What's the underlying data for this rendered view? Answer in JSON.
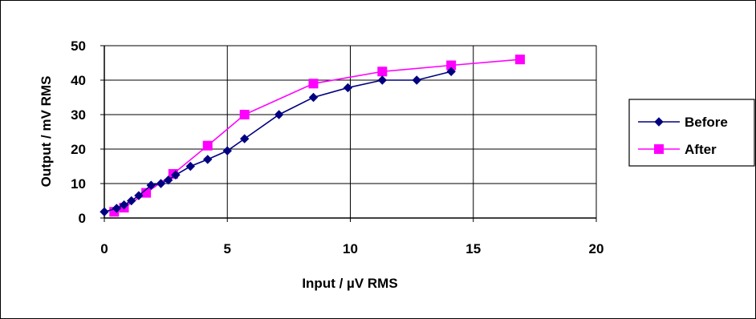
{
  "chart_data": {
    "type": "line",
    "xlabel": "Input / µV RMS",
    "ylabel": "Output / mV RMS",
    "xlim": [
      0,
      20
    ],
    "ylim": [
      0,
      50
    ],
    "xticks": [
      "0",
      "5",
      "10",
      "15",
      "20"
    ],
    "yticks": [
      "0",
      "10",
      "20",
      "30",
      "40",
      "50"
    ],
    "grid": true,
    "legend_position": "right",
    "series": [
      {
        "name": "Before",
        "color": "#000080",
        "marker": "diamond",
        "x": [
          0.0,
          0.5,
          0.8,
          1.1,
          1.4,
          1.9,
          2.3,
          2.6,
          2.9,
          3.5,
          4.2,
          5.0,
          5.7,
          7.1,
          8.5,
          9.9,
          11.3,
          12.7,
          14.1
        ],
        "y": [
          1.8,
          2.8,
          3.8,
          5.0,
          6.5,
          9.5,
          10.0,
          11.0,
          12.5,
          15.0,
          17.0,
          19.5,
          23.0,
          30.0,
          35.0,
          37.8,
          40.0,
          40.0,
          42.5
        ]
      },
      {
        "name": "After",
        "color": "#FF00FF",
        "marker": "square",
        "x": [
          0.4,
          0.8,
          1.7,
          2.8,
          4.2,
          5.7,
          8.5,
          11.3,
          14.1,
          16.9
        ],
        "y": [
          1.8,
          3.0,
          7.3,
          12.8,
          21.0,
          30.0,
          39.0,
          42.5,
          44.3,
          46.0
        ]
      }
    ]
  }
}
